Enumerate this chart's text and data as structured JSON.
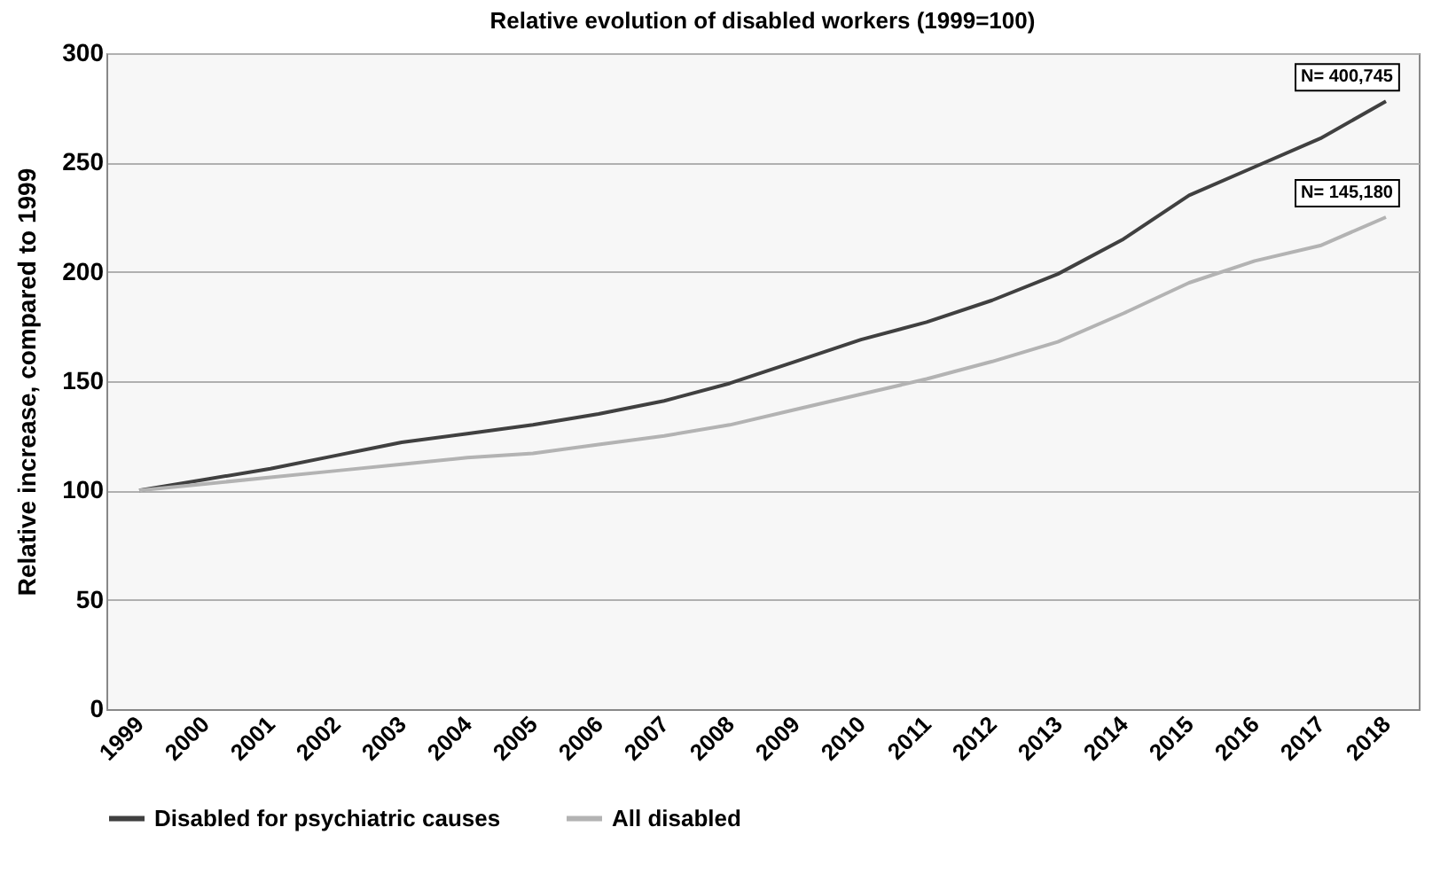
{
  "chart_data": {
    "type": "line",
    "title": "Relative evolution of disabled workers (1999=100)",
    "ylabel": "Relative increase, compared to 1999",
    "categories": [
      "1999",
      "2000",
      "2001",
      "2002",
      "2003",
      "2004",
      "2005",
      "2006",
      "2007",
      "2008",
      "2009",
      "2010",
      "2011",
      "2012",
      "2013",
      "2014",
      "2015",
      "2016",
      "2017",
      "2018"
    ],
    "series": [
      {
        "name": "Disabled for psychiatric causes",
        "color": "#404040",
        "values": [
          100,
          105,
          110,
          116,
          122,
          126,
          130,
          135,
          141,
          149,
          159,
          169,
          177,
          187,
          199,
          215,
          235,
          248,
          261,
          278
        ]
      },
      {
        "name": "All disabled",
        "color": "#b3b3b3",
        "values": [
          100,
          103,
          106,
          109,
          112,
          115,
          117,
          121,
          125,
          130,
          137,
          144,
          151,
          159,
          168,
          181,
          195,
          205,
          212,
          225
        ]
      }
    ],
    "ylim": [
      0,
      300
    ],
    "yticks": [
      0,
      50,
      100,
      150,
      200,
      250,
      300
    ],
    "grid": "y",
    "legend": "bottom",
    "marker": "none",
    "line_style": "solid",
    "annotations": [
      {
        "text": "N= 400,745",
        "x": "2018",
        "y": 278
      },
      {
        "text": "N= 145,180",
        "x": "2018",
        "y": 225
      }
    ]
  }
}
